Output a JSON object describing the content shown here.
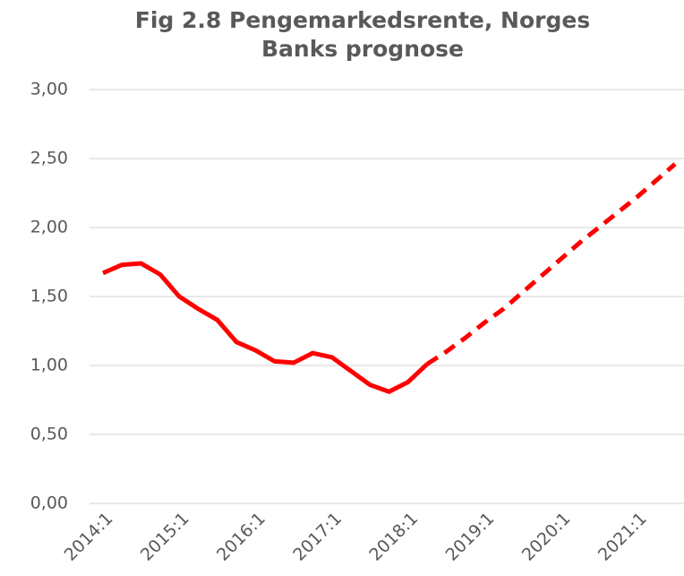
{
  "chart_data": {
    "type": "line",
    "title": [
      "Fig 2.8 Pengemarkedsrente, Norges",
      "Banks prognose"
    ],
    "categories": [
      "2014:1",
      null,
      null,
      null,
      "2015:1",
      null,
      null,
      null,
      "2016:1",
      null,
      null,
      null,
      "2017:1",
      null,
      null,
      null,
      "2018:1",
      null,
      null,
      null,
      "2019:1",
      null,
      null,
      null,
      "2020:1",
      null,
      null,
      null,
      "2021:1",
      null,
      null
    ],
    "series": [
      {
        "color": "#ff0000",
        "dash": false,
        "values": [
          1.67,
          1.73,
          1.74,
          1.66,
          1.5,
          1.41,
          1.33,
          1.17,
          1.11,
          1.03,
          1.02,
          1.09,
          1.06,
          0.96,
          0.86,
          0.81,
          0.88,
          1.01,
          null,
          null,
          null,
          null,
          null,
          null,
          null,
          null,
          null,
          null,
          null,
          null,
          null
        ]
      },
      {
        "color": "#ff0000",
        "dash": true,
        "values": [
          null,
          null,
          null,
          null,
          null,
          null,
          null,
          null,
          null,
          null,
          null,
          null,
          null,
          null,
          null,
          null,
          null,
          1.01,
          1.1,
          1.2,
          1.31,
          1.41,
          1.53,
          1.65,
          1.77,
          1.89,
          2.0,
          2.11,
          2.22,
          2.34,
          2.46
        ]
      }
    ],
    "ylim": [
      0,
      3
    ],
    "yticks": [
      {
        "value": 0,
        "label": "0,00"
      },
      {
        "value": 0.5,
        "label": "0,50"
      },
      {
        "value": 1,
        "label": "1,00"
      },
      {
        "value": 1.5,
        "label": "1,50"
      },
      {
        "value": 2,
        "label": "2,00"
      },
      {
        "value": 2.5,
        "label": "2,50"
      },
      {
        "value": 3,
        "label": "3,00"
      }
    ],
    "grid": true
  }
}
